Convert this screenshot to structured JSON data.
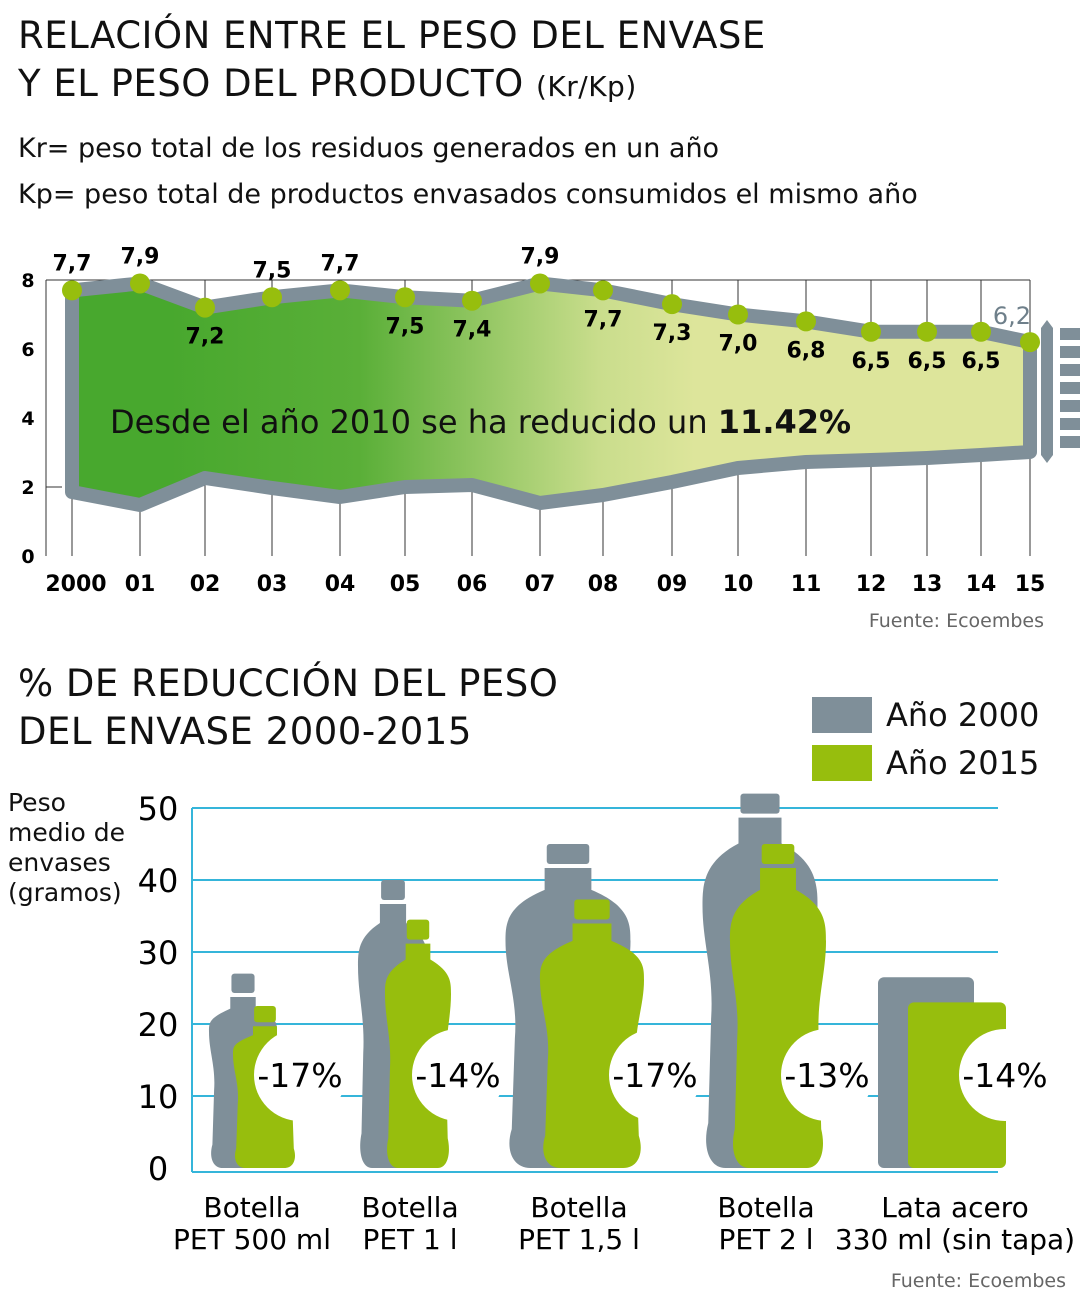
{
  "top": {
    "title_line1": "RELACIÓN ENTRE EL PESO DEL ENVASE",
    "title_line2": "Y EL PESO DEL PRODUCTO",
    "title_unit": "(Kr/Kp)",
    "def_kr": "Kr= peso total de los residuos generados en un año",
    "def_kp": "Kp= peso total de productos envasados consumidos el mismo año",
    "annotation_prefix": "Desde el año 2010 se ha reducido un ",
    "annotation_value": "11.42%",
    "source": "Fuente: Ecoembes"
  },
  "bottom": {
    "title_line1": "% DE REDUCCIÓN DEL PESO",
    "title_line2": "DEL ENVASE 2000-2015",
    "ylabel_lines": [
      "Peso",
      "medio de",
      "envases",
      "(gramos)"
    ],
    "source": "Fuente: Ecoembes"
  },
  "chart_data": [
    {
      "type": "area",
      "title": "Relación entre el peso del envase y el peso del producto (Kr/Kp)",
      "x": [
        "2000",
        "01",
        "02",
        "03",
        "04",
        "05",
        "06",
        "07",
        "08",
        "09",
        "10",
        "11",
        "12",
        "13",
        "14",
        "15"
      ],
      "values": [
        7.7,
        7.9,
        7.2,
        7.5,
        7.7,
        7.5,
        7.4,
        7.9,
        7.7,
        7.3,
        7.0,
        6.8,
        6.5,
        6.5,
        6.5,
        6.2
      ],
      "value_labels": [
        "7,7",
        "7,9",
        "7,2",
        "7,5",
        "7,7",
        "7,5",
        "7,4",
        "7,9",
        "7,7",
        "7,3",
        "7,0",
        "6,8",
        "6,5",
        "6,5",
        "6,5",
        "6,2"
      ],
      "yticks": [
        "0",
        "2",
        "4",
        "6",
        "8"
      ],
      "ylim": [
        0,
        8
      ],
      "grid": true,
      "colors": {
        "band": "#7f8f99",
        "point": "#97be0d",
        "fill_start": "#48a82e",
        "fill_end": "#dde59b"
      }
    },
    {
      "type": "bar",
      "categories": [
        [
          "Botella",
          "PET 500 ml"
        ],
        [
          "Botella",
          "PET 1 l"
        ],
        [
          "Botella",
          "PET 1,5 l"
        ],
        [
          "Botella",
          "PET 2 l"
        ],
        [
          "Lata acero",
          "330 ml (sin tapa)"
        ]
      ],
      "shapes": [
        "bottle",
        "bottle",
        "bottle",
        "bottle",
        "can"
      ],
      "series": [
        {
          "name": "Año 2000",
          "color": "#7f8f99",
          "values": [
            27,
            40,
            45,
            52,
            26.5
          ]
        },
        {
          "name": "Año 2015",
          "color": "#97be0d",
          "values": [
            22.5,
            34.5,
            37.3,
            45,
            23
          ]
        }
      ],
      "reduction_labels": [
        "-17%",
        "-14%",
        "-17%",
        "-13%",
        "-14%"
      ],
      "yticks": [
        "0",
        "10",
        "20",
        "30",
        "40",
        "50"
      ],
      "ylim": [
        0,
        50
      ],
      "ylabel": "Peso medio de envases (gramos)",
      "legend": "top-right",
      "grid_color": "#35b5da"
    }
  ]
}
